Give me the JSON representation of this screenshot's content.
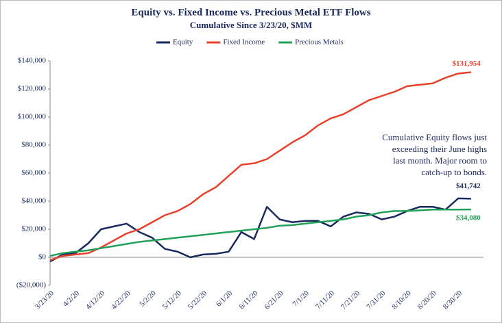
{
  "chart_data": {
    "type": "line",
    "title": "Equity vs. Fixed Income vs. Precious Metal ETF Flows",
    "subtitle": "Cumulative Since 3/23/20, $MM",
    "categories": [
      "3/23/20",
      null,
      "4/2/20",
      null,
      "4/12/20",
      null,
      "4/22/20",
      null,
      "5/2/20",
      null,
      "5/12/20",
      null,
      "5/22/20",
      null,
      "6/1/20",
      null,
      "6/11/20",
      null,
      "6/21/20",
      null,
      "7/1/20",
      null,
      "7/11/20",
      null,
      "7/21/20",
      null,
      "7/31/20",
      null,
      "8/10/20",
      null,
      "8/20/20",
      null,
      "8/30/20",
      null
    ],
    "series": [
      {
        "name": "Equity",
        "color": "#1b2a5c",
        "values": [
          -3000,
          2000,
          3000,
          10000,
          20000,
          22000,
          24000,
          18000,
          14000,
          6000,
          4000,
          0,
          2000,
          2500,
          4000,
          18000,
          13000,
          36000,
          27000,
          25000,
          26000,
          26000,
          22000,
          29000,
          32000,
          31000,
          27000,
          29000,
          33000,
          36000,
          36000,
          34000,
          42000,
          41742
        ],
        "value_labels": [
          null,
          null,
          null,
          null,
          null,
          null,
          null,
          null,
          null,
          null,
          null,
          null,
          null,
          null,
          null,
          null,
          null,
          null,
          null,
          null,
          null,
          null,
          null,
          null,
          null,
          null,
          null,
          null,
          null,
          null,
          null,
          null,
          null,
          "$41,742"
        ]
      },
      {
        "name": "Fixed Income",
        "color": "#e8412c",
        "values": [
          -2000,
          1000,
          2000,
          3000,
          7000,
          12000,
          17000,
          20000,
          25000,
          30000,
          33000,
          38000,
          45000,
          50000,
          58000,
          66000,
          67000,
          70000,
          76000,
          82000,
          87000,
          94000,
          99000,
          102000,
          107000,
          112000,
          115000,
          118000,
          122000,
          123000,
          124000,
          128000,
          131000,
          131954
        ],
        "value_labels": [
          null,
          null,
          null,
          null,
          null,
          null,
          null,
          null,
          null,
          null,
          null,
          null,
          null,
          null,
          null,
          null,
          null,
          null,
          null,
          null,
          null,
          null,
          null,
          null,
          null,
          null,
          null,
          null,
          null,
          null,
          null,
          null,
          null,
          "$131,954"
        ]
      },
      {
        "name": "Precious Metals",
        "color": "#22a05a",
        "values": [
          1000,
          3000,
          4000,
          5000,
          6500,
          8000,
          9500,
          11000,
          12000,
          13000,
          14000,
          15000,
          16000,
          17000,
          18000,
          19000,
          20000,
          21000,
          22500,
          23000,
          24000,
          25000,
          26000,
          27000,
          29000,
          30000,
          32000,
          33000,
          33000,
          33500,
          34000,
          34000,
          34000,
          34080
        ],
        "value_labels": [
          null,
          null,
          null,
          null,
          null,
          null,
          null,
          null,
          null,
          null,
          null,
          null,
          null,
          null,
          null,
          null,
          null,
          null,
          null,
          null,
          null,
          null,
          null,
          null,
          null,
          null,
          null,
          null,
          null,
          null,
          null,
          null,
          null,
          "$34,080"
        ]
      }
    ],
    "ylim": [
      -20000,
      140000
    ],
    "yticks": [
      {
        "value": -20000,
        "label": "($20,000)"
      },
      {
        "value": 0,
        "label": "$0"
      },
      {
        "value": 20000,
        "label": "$20,000"
      },
      {
        "value": 40000,
        "label": "$40,000"
      },
      {
        "value": 60000,
        "label": "$60,000"
      },
      {
        "value": 80000,
        "label": "$80,000"
      },
      {
        "value": 100000,
        "label": "$100,000"
      },
      {
        "value": 120000,
        "label": "$120,000"
      },
      {
        "value": 140000,
        "label": "$140,000"
      }
    ],
    "annotation": [
      "Cumulative Equity flows just",
      "exceeding their June highs",
      "last month. Major room to",
      "catch-up to bonds."
    ],
    "legend": "top",
    "grid": false
  }
}
